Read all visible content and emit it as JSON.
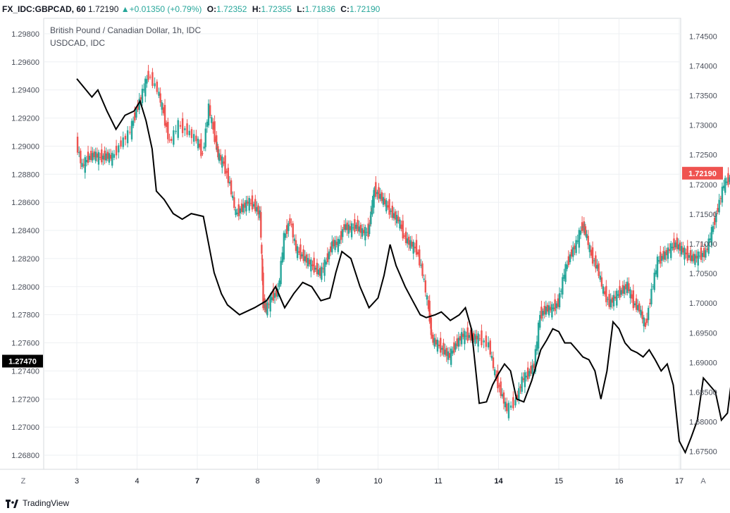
{
  "header": {
    "symbol": "FX_IDC:GBPCAD, 60",
    "last": "1.72190",
    "arrow_icon": "triangle-up-icon",
    "change": "+0.01350 (+0.79%)",
    "o_label": "O:",
    "o_value": "1.72352",
    "h_label": "H:",
    "h_value": "1.72355",
    "l_label": "L:",
    "l_value": "1.71836",
    "c_label": "C:",
    "c_value": "1.72190"
  },
  "legend": {
    "main": "British Pound / Canadian Dollar, 1h, IDC",
    "compare": "USDCAD, IDC"
  },
  "footer": {
    "brand": "TradingView",
    "logo_icon": "tradingview-logo-icon"
  },
  "axis_buttons": {
    "left": "Z",
    "right": "A"
  },
  "colors": {
    "up": "#26a69a",
    "down": "#ef5350",
    "line": "#000000",
    "grid": "#eef0f3"
  },
  "chart_data": {
    "type": "line",
    "x_categories": [
      "3",
      "4",
      "7",
      "8",
      "9",
      "10",
      "11",
      "14",
      "15",
      "16",
      "17"
    ],
    "left_axis": {
      "ticks": [
        "1.29800",
        "1.29600",
        "1.29400",
        "1.29200",
        "1.29000",
        "1.28800",
        "1.28600",
        "1.28400",
        "1.28200",
        "1.28000",
        "1.27800",
        "1.27600",
        "1.27400",
        "1.27200",
        "1.27000",
        "1.26800"
      ],
      "range": [
        1.267,
        1.2991
      ],
      "current_label": "1.27470",
      "current_value": 1.2747
    },
    "right_axis": {
      "ticks": [
        "1.74500",
        "1.74000",
        "1.73500",
        "1.73000",
        "1.72500",
        "1.72000",
        "1.71500",
        "1.71000",
        "1.70500",
        "1.70000",
        "1.69500",
        "1.69000",
        "1.68500",
        "1.68000",
        "1.67500"
      ],
      "range": [
        1.672,
        1.748
      ],
      "current_label": "1.72190",
      "current_value": 1.7219
    },
    "series": [
      {
        "name": "USDCAD, IDC",
        "type": "line",
        "axis": "left",
        "points": [
          [
            0,
            1.2948
          ],
          [
            0.25,
            1.2935
          ],
          [
            0.35,
            1.294
          ],
          [
            0.5,
            1.2925
          ],
          [
            0.65,
            1.2912
          ],
          [
            0.8,
            1.2922
          ],
          [
            0.95,
            1.2925
          ],
          [
            1.05,
            1.2932
          ],
          [
            1.15,
            1.2918
          ],
          [
            1.25,
            1.2898
          ],
          [
            1.32,
            1.2868
          ],
          [
            1.45,
            1.2862
          ],
          [
            1.6,
            1.2852
          ],
          [
            1.75,
            1.2848
          ],
          [
            1.9,
            1.2852
          ],
          [
            2.1,
            1.285
          ],
          [
            2.28,
            1.281
          ],
          [
            2.4,
            1.2795
          ],
          [
            2.5,
            1.2787
          ],
          [
            2.7,
            1.278
          ],
          [
            2.95,
            1.2785
          ],
          [
            3.15,
            1.279
          ],
          [
            3.3,
            1.28
          ],
          [
            3.45,
            1.2785
          ],
          [
            3.6,
            1.2795
          ],
          [
            3.75,
            1.2803
          ],
          [
            3.9,
            1.28
          ],
          [
            4.05,
            1.279
          ],
          [
            4.2,
            1.2792
          ],
          [
            4.3,
            1.281
          ],
          [
            4.4,
            1.2825
          ],
          [
            4.55,
            1.282
          ],
          [
            4.7,
            1.28
          ],
          [
            4.85,
            1.2785
          ],
          [
            5.0,
            1.2792
          ],
          [
            5.1,
            1.2808
          ],
          [
            5.2,
            1.283
          ],
          [
            5.3,
            1.2815
          ],
          [
            5.45,
            1.28
          ],
          [
            5.55,
            1.2792
          ],
          [
            5.7,
            1.278
          ],
          [
            5.8,
            1.2778
          ],
          [
            5.95,
            1.278
          ],
          [
            6.05,
            1.2782
          ],
          [
            6.2,
            1.2776
          ],
          [
            6.35,
            1.278
          ],
          [
            6.45,
            1.2785
          ],
          [
            6.55,
            1.277
          ],
          [
            6.68,
            1.2717
          ],
          [
            6.8,
            1.2718
          ],
          [
            6.9,
            1.273
          ],
          [
            7.0,
            1.2738
          ],
          [
            7.1,
            1.2745
          ],
          [
            7.2,
            1.274
          ],
          [
            7.3,
            1.272
          ],
          [
            7.42,
            1.2718
          ],
          [
            7.55,
            1.2733
          ],
          [
            7.7,
            1.2755
          ],
          [
            7.8,
            1.2762
          ],
          [
            7.9,
            1.277
          ],
          [
            8.0,
            1.2768
          ],
          [
            8.1,
            1.276
          ],
          [
            8.2,
            1.276
          ],
          [
            8.3,
            1.2755
          ],
          [
            8.4,
            1.275
          ],
          [
            8.5,
            1.2748
          ],
          [
            8.6,
            1.274
          ],
          [
            8.7,
            1.272
          ],
          [
            8.8,
            1.274
          ],
          [
            8.9,
            1.2775
          ],
          [
            9.0,
            1.277
          ],
          [
            9.1,
            1.276
          ],
          [
            9.2,
            1.2755
          ],
          [
            9.3,
            1.2753
          ],
          [
            9.4,
            1.275
          ],
          [
            9.5,
            1.2755
          ],
          [
            9.6,
            1.2748
          ],
          [
            9.7,
            1.274
          ],
          [
            9.8,
            1.2745
          ],
          [
            9.9,
            1.273
          ],
          [
            10.0,
            1.269
          ],
          [
            10.1,
            1.2682
          ],
          [
            10.2,
            1.2693
          ],
          [
            10.3,
            1.2705
          ],
          [
            10.4,
            1.2735
          ],
          [
            10.5,
            1.273
          ],
          [
            10.6,
            1.2725
          ],
          [
            10.7,
            1.2705
          ],
          [
            10.8,
            1.271
          ],
          [
            10.9,
            1.2745
          ],
          [
            11.0,
            1.2742
          ],
          [
            11.1,
            1.2745
          ],
          [
            11.15,
            1.274
          ]
        ]
      },
      {
        "name": "British Pound / Canadian Dollar, 1h, IDC",
        "type": "candlestick",
        "axis": "right",
        "points": [
          [
            0,
            1.727
          ],
          [
            0.1,
            1.723
          ],
          [
            0.2,
            1.7245
          ],
          [
            0.3,
            1.725
          ],
          [
            0.4,
            1.7245
          ],
          [
            0.5,
            1.7248
          ],
          [
            0.6,
            1.7245
          ],
          [
            0.75,
            1.727
          ],
          [
            0.9,
            1.729
          ],
          [
            1.0,
            1.7325
          ],
          [
            1.1,
            1.7355
          ],
          [
            1.2,
            1.7385
          ],
          [
            1.35,
            1.736
          ],
          [
            1.45,
            1.732
          ],
          [
            1.55,
            1.727
          ],
          [
            1.7,
            1.73
          ],
          [
            1.85,
            1.729
          ],
          [
            2.0,
            1.7275
          ],
          [
            2.1,
            1.725
          ],
          [
            2.2,
            1.733
          ],
          [
            2.3,
            1.728
          ],
          [
            2.35,
            1.725
          ],
          [
            2.45,
            1.7235
          ],
          [
            2.55,
            1.72
          ],
          [
            2.65,
            1.715
          ],
          [
            2.75,
            1.716
          ],
          [
            2.85,
            1.717
          ],
          [
            2.95,
            1.7165
          ],
          [
            3.05,
            1.715
          ],
          [
            3.1,
            1.7
          ],
          [
            3.15,
            1.699
          ],
          [
            3.25,
            1.701
          ],
          [
            3.35,
            1.702
          ],
          [
            3.45,
            1.711
          ],
          [
            3.55,
            1.714
          ],
          [
            3.65,
            1.709
          ],
          [
            3.75,
            1.708
          ],
          [
            3.85,
            1.707
          ],
          [
            3.95,
            1.706
          ],
          [
            4.05,
            1.705
          ],
          [
            4.15,
            1.707
          ],
          [
            4.25,
            1.71
          ],
          [
            4.35,
            1.71
          ],
          [
            4.45,
            1.713
          ],
          [
            4.55,
            1.7125
          ],
          [
            4.65,
            1.713
          ],
          [
            4.75,
            1.712
          ],
          [
            4.85,
            1.712
          ],
          [
            4.9,
            1.716
          ],
          [
            4.95,
            1.719
          ],
          [
            5.05,
            1.718
          ],
          [
            5.15,
            1.7165
          ],
          [
            5.25,
            1.715
          ],
          [
            5.35,
            1.714
          ],
          [
            5.45,
            1.711
          ],
          [
            5.55,
            1.71
          ],
          [
            5.65,
            1.709
          ],
          [
            5.75,
            1.705
          ],
          [
            5.85,
            1.699
          ],
          [
            5.9,
            1.694
          ],
          [
            6.0,
            1.693
          ],
          [
            6.1,
            1.692
          ],
          [
            6.2,
            1.691
          ],
          [
            6.3,
            1.693
          ],
          [
            6.4,
            1.6945
          ],
          [
            6.5,
            1.6945
          ],
          [
            6.6,
            1.6942
          ],
          [
            6.7,
            1.694
          ],
          [
            6.85,
            1.693
          ],
          [
            6.95,
            1.688
          ],
          [
            7.05,
            1.685
          ],
          [
            7.15,
            1.682
          ],
          [
            7.3,
            1.6835
          ],
          [
            7.4,
            1.687
          ],
          [
            7.5,
            1.688
          ],
          [
            7.6,
            1.6895
          ],
          [
            7.7,
            1.698
          ],
          [
            7.8,
            1.699
          ],
          [
            7.9,
            1.699
          ],
          [
            8.0,
            1.7
          ],
          [
            8.1,
            1.705
          ],
          [
            8.2,
            1.708
          ],
          [
            8.3,
            1.71
          ],
          [
            8.4,
            1.713
          ],
          [
            8.45,
            1.712
          ],
          [
            8.55,
            1.708
          ],
          [
            8.65,
            1.706
          ],
          [
            8.75,
            1.702
          ],
          [
            8.85,
            1.7
          ],
          [
            8.95,
            1.701
          ],
          [
            9.05,
            1.702
          ],
          [
            9.15,
            1.703
          ],
          [
            9.25,
            1.7
          ],
          [
            9.35,
            1.699
          ],
          [
            9.45,
            1.696
          ],
          [
            9.55,
            1.702
          ],
          [
            9.65,
            1.707
          ],
          [
            9.75,
            1.708
          ],
          [
            9.85,
            1.709
          ],
          [
            9.95,
            1.71
          ],
          [
            10.05,
            1.709
          ],
          [
            10.15,
            1.708
          ],
          [
            10.25,
            1.7075
          ],
          [
            10.35,
            1.708
          ],
          [
            10.45,
            1.7085
          ],
          [
            10.55,
            1.712
          ],
          [
            10.65,
            1.716
          ],
          [
            10.75,
            1.72
          ],
          [
            10.85,
            1.721
          ],
          [
            10.95,
            1.724
          ],
          [
            11.0,
            1.727
          ],
          [
            11.05,
            1.725
          ],
          [
            11.1,
            1.723
          ],
          [
            11.15,
            1.7219
          ]
        ]
      }
    ]
  }
}
